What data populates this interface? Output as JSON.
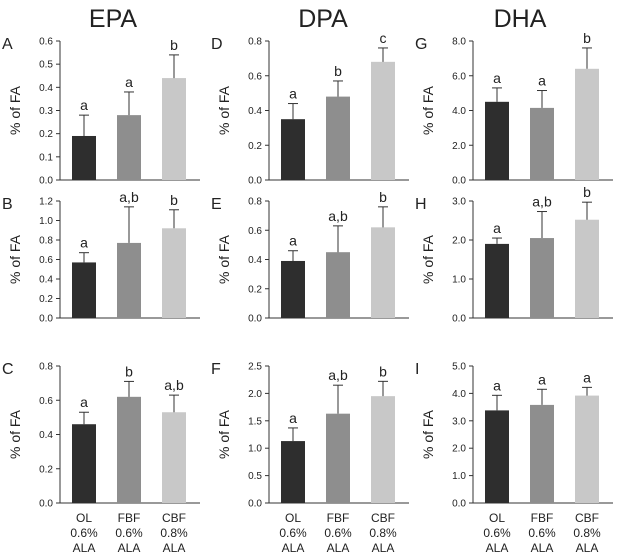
{
  "colors": {
    "OL": "#2e2e2e",
    "FBF": "#8e8e8e",
    "CBF": "#c8c8c8",
    "axis": "#333333"
  },
  "columns": [
    "EPA",
    "DPA",
    "DHA"
  ],
  "x_tick_labels": [
    [
      "OL",
      "0.6%",
      "ALA"
    ],
    [
      "FBF",
      "0.6%",
      "ALA"
    ],
    [
      "CBF",
      "0.8%",
      "ALA"
    ]
  ],
  "chart_data": [
    {
      "type": "bar",
      "panel": "A",
      "fatty_acid": "EPA",
      "categories": [
        "OL",
        "FBF",
        "CBF"
      ],
      "values": [
        0.19,
        0.28,
        0.44
      ],
      "errors": [
        0.09,
        0.1,
        0.1
      ],
      "sig": [
        "a",
        "a",
        "b"
      ],
      "ylabel": "% of FA",
      "ylim": [
        0,
        0.6
      ],
      "yticks": [
        "0.0",
        "0.1",
        "0.2",
        "0.3",
        "0.4",
        "0.5",
        "0.6"
      ]
    },
    {
      "type": "bar",
      "panel": "D",
      "fatty_acid": "DPA",
      "categories": [
        "OL",
        "FBF",
        "CBF"
      ],
      "values": [
        0.35,
        0.48,
        0.68
      ],
      "errors": [
        0.09,
        0.09,
        0.08
      ],
      "sig": [
        "a",
        "b",
        "c"
      ],
      "ylabel": "% of FA",
      "ylim": [
        0,
        0.8
      ],
      "yticks": [
        "0.0",
        "0.2",
        "0.4",
        "0.6",
        "0.8"
      ]
    },
    {
      "type": "bar",
      "panel": "G",
      "fatty_acid": "DHA",
      "categories": [
        "OL",
        "FBF",
        "CBF"
      ],
      "values": [
        4.5,
        4.15,
        6.4
      ],
      "errors": [
        0.8,
        1.0,
        1.2
      ],
      "sig": [
        "a",
        "a",
        "b"
      ],
      "ylabel": "% of FA",
      "ylim": [
        0,
        8.0
      ],
      "yticks": [
        "0.0",
        "2.0",
        "4.0",
        "6.0",
        "8.0"
      ]
    },
    {
      "type": "bar",
      "panel": "B",
      "fatty_acid": "EPA",
      "categories": [
        "OL",
        "FBF",
        "CBF"
      ],
      "values": [
        0.57,
        0.77,
        0.92
      ],
      "errors": [
        0.1,
        0.37,
        0.19
      ],
      "sig": [
        "a",
        "a,b",
        "b"
      ],
      "ylabel": "% of FA",
      "ylim": [
        0,
        1.2
      ],
      "yticks": [
        "0.0",
        "0.2",
        "0.4",
        "0.6",
        "0.8",
        "1.0",
        "1.2"
      ]
    },
    {
      "type": "bar",
      "panel": "E",
      "fatty_acid": "DPA",
      "categories": [
        "OL",
        "FBF",
        "CBF"
      ],
      "values": [
        0.39,
        0.45,
        0.62
      ],
      "errors": [
        0.07,
        0.18,
        0.14
      ],
      "sig": [
        "a",
        "a,b",
        "b"
      ],
      "ylabel": "% of FA",
      "ylim": [
        0,
        0.8
      ],
      "yticks": [
        "0.0",
        "0.2",
        "0.4",
        "0.6",
        "0.8"
      ]
    },
    {
      "type": "bar",
      "panel": "H",
      "fatty_acid": "DHA",
      "categories": [
        "OL",
        "FBF",
        "CBF"
      ],
      "values": [
        1.9,
        2.05,
        2.52
      ],
      "errors": [
        0.15,
        0.68,
        0.45
      ],
      "sig": [
        "a",
        "a,b",
        "b"
      ],
      "ylabel": "% of FA",
      "ylim": [
        0,
        3.0
      ],
      "yticks": [
        "0.0",
        "1.0",
        "2.0",
        "3.0"
      ]
    },
    {
      "type": "bar",
      "panel": "C",
      "fatty_acid": "EPA",
      "categories": [
        "OL",
        "FBF",
        "CBF"
      ],
      "values": [
        0.46,
        0.62,
        0.53
      ],
      "errors": [
        0.07,
        0.09,
        0.1
      ],
      "sig": [
        "a",
        "b",
        "a,b"
      ],
      "ylabel": "% of FA",
      "ylim": [
        0,
        0.8
      ],
      "yticks": [
        "0.0",
        "0.2",
        "0.4",
        "0.6",
        "0.8"
      ]
    },
    {
      "type": "bar",
      "panel": "F",
      "fatty_acid": "DPA",
      "categories": [
        "OL",
        "FBF",
        "CBF"
      ],
      "values": [
        1.13,
        1.63,
        1.95
      ],
      "errors": [
        0.24,
        0.52,
        0.27
      ],
      "sig": [
        "a",
        "a,b",
        "b"
      ],
      "ylabel": "% of FA",
      "ylim": [
        0,
        2.5
      ],
      "yticks": [
        "0.0",
        "0.5",
        "1.0",
        "1.5",
        "2.0",
        "2.5"
      ]
    },
    {
      "type": "bar",
      "panel": "I",
      "fatty_acid": "DHA",
      "categories": [
        "OL",
        "FBF",
        "CBF"
      ],
      "values": [
        3.38,
        3.58,
        3.92
      ],
      "errors": [
        0.55,
        0.57,
        0.3
      ],
      "sig": [
        "a",
        "a",
        "a"
      ],
      "ylabel": "% of FA",
      "ylim": [
        0,
        5.0
      ],
      "yticks": [
        "0.0",
        "1.0",
        "2.0",
        "3.0",
        "4.0",
        "5.0"
      ]
    }
  ]
}
